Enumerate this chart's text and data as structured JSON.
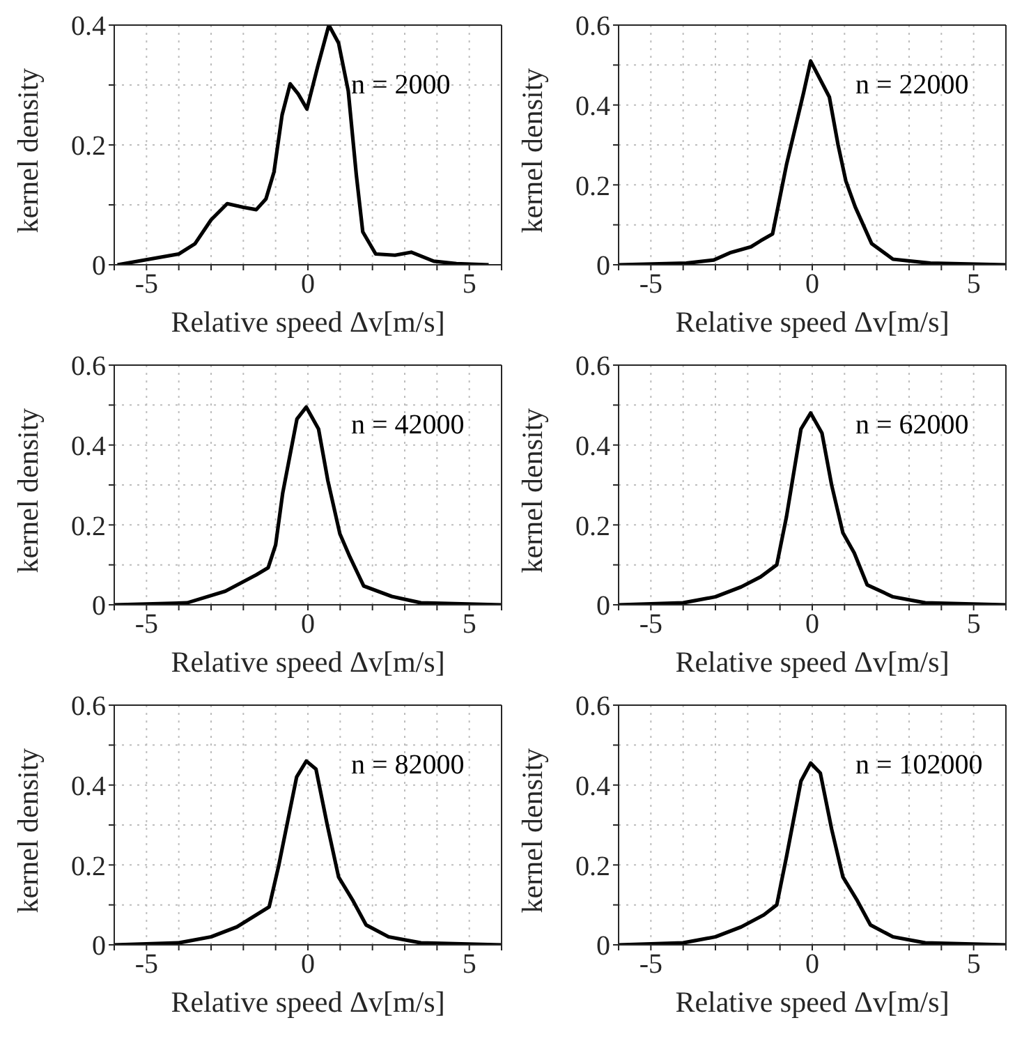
{
  "chart_data": [
    {
      "type": "line",
      "xlabel": "Relative speed Δv[m/s]",
      "ylabel": "kernel density",
      "annotations": [
        "n = 2000"
      ],
      "xlim": [
        -6,
        6
      ],
      "ylim": [
        0,
        0.4
      ],
      "xticks": [
        {
          "value": -6,
          "label": null
        },
        -5,
        {
          "value": -4,
          "label": null
        },
        {
          "value": -3,
          "label": null
        },
        {
          "value": -2,
          "label": null
        },
        {
          "value": -1,
          "label": null
        },
        0,
        {
          "value": 1,
          "label": null
        },
        {
          "value": 2,
          "label": null
        },
        {
          "value": 3,
          "label": null
        },
        {
          "value": 4,
          "label": null
        },
        5,
        {
          "value": 6,
          "label": null
        }
      ],
      "yticks": [
        0,
        {
          "value": 0.1,
          "label": null
        },
        0.2,
        {
          "value": 0.3,
          "label": null
        },
        0.4
      ],
      "grid": true,
      "marker": "none",
      "line_style": "solid",
      "series": [
        {
          "color": "#000000",
          "x": [
            -5.9,
            -4,
            -3.5,
            -3,
            -2.5,
            -2,
            -1.6,
            -1.3,
            -1.05,
            -0.8,
            -0.55,
            -0.3,
            -0.03,
            0.3,
            0.65,
            0.95,
            1.25,
            1.5,
            1.7,
            2.1,
            2.7,
            3.2,
            3.9,
            4.6,
            5.6
          ],
          "values": [
            0,
            0.018,
            0.035,
            0.075,
            0.102,
            0.096,
            0.092,
            0.11,
            0.155,
            0.25,
            0.302,
            0.285,
            0.26,
            0.33,
            0.4,
            0.37,
            0.29,
            0.15,
            0.055,
            0.018,
            0.016,
            0.021,
            0.006,
            0.002,
            0
          ]
        }
      ]
    },
    {
      "type": "line",
      "xlabel": "Relative speed Δv[m/s]",
      "ylabel": "kernel density",
      "annotations": [
        "n = 22000"
      ],
      "xlim": [
        -6,
        6
      ],
      "ylim": [
        0,
        0.6
      ],
      "xticks": [
        {
          "value": -6,
          "label": null
        },
        -5,
        {
          "value": -4,
          "label": null
        },
        {
          "value": -3,
          "label": null
        },
        {
          "value": -2,
          "label": null
        },
        {
          "value": -1,
          "label": null
        },
        0,
        {
          "value": 1,
          "label": null
        },
        {
          "value": 2,
          "label": null
        },
        {
          "value": 3,
          "label": null
        },
        {
          "value": 4,
          "label": null
        },
        5,
        {
          "value": 6,
          "label": null
        }
      ],
      "yticks": [
        0,
        {
          "value": 0.1,
          "label": null
        },
        0.2,
        {
          "value": 0.3,
          "label": null
        },
        0.4,
        {
          "value": 0.5,
          "label": null
        },
        0.6
      ],
      "grid": true,
      "marker": "none",
      "line_style": "solid",
      "series": [
        {
          "color": "#000000",
          "x": [
            -6,
            -3.9,
            -3.05,
            -2.55,
            -1.9,
            -1.6,
            -1.23,
            -0.8,
            -0.27,
            -0.05,
            0.53,
            0.8,
            1.04,
            1.33,
            1.84,
            2.5,
            3.66,
            6
          ],
          "values": [
            0,
            0.004,
            0.012,
            0.03,
            0.045,
            0.06,
            0.077,
            0.25,
            0.43,
            0.51,
            0.42,
            0.3,
            0.21,
            0.145,
            0.053,
            0.014,
            0.004,
            0
          ]
        }
      ]
    },
    {
      "type": "line",
      "xlabel": "Relative speed Δv[m/s]",
      "ylabel": "kernel density",
      "annotations": [
        "n = 42000"
      ],
      "xlim": [
        -6,
        6
      ],
      "ylim": [
        0,
        0.6
      ],
      "xticks": [
        {
          "value": -6,
          "label": null
        },
        -5,
        {
          "value": -4,
          "label": null
        },
        {
          "value": -3,
          "label": null
        },
        {
          "value": -2,
          "label": null
        },
        {
          "value": -1,
          "label": null
        },
        0,
        {
          "value": 1,
          "label": null
        },
        {
          "value": 2,
          "label": null
        },
        {
          "value": 3,
          "label": null
        },
        {
          "value": 4,
          "label": null
        },
        5,
        {
          "value": 6,
          "label": null
        }
      ],
      "yticks": [
        0,
        {
          "value": 0.1,
          "label": null
        },
        0.2,
        {
          "value": 0.3,
          "label": null
        },
        0.4,
        {
          "value": 0.5,
          "label": null
        },
        0.6
      ],
      "grid": true,
      "marker": "none",
      "line_style": "solid",
      "series": [
        {
          "color": "#000000",
          "x": [
            -6,
            -3.74,
            -2.56,
            -1.6,
            -1.23,
            -1,
            -0.78,
            -0.34,
            -0.05,
            0.33,
            0.62,
            0.99,
            1.3,
            1.73,
            2.6,
            3.5,
            6
          ],
          "values": [
            0,
            0.005,
            0.034,
            0.075,
            0.093,
            0.15,
            0.28,
            0.465,
            0.495,
            0.44,
            0.31,
            0.178,
            0.12,
            0.047,
            0.021,
            0.005,
            0
          ]
        }
      ]
    },
    {
      "type": "line",
      "xlabel": "Relative speed Δv[m/s]",
      "ylabel": "kernel density",
      "annotations": [
        "n = 62000"
      ],
      "xlim": [
        -6,
        6
      ],
      "ylim": [
        0,
        0.6
      ],
      "xticks": [
        {
          "value": -6,
          "label": null
        },
        -5,
        {
          "value": -4,
          "label": null
        },
        {
          "value": -3,
          "label": null
        },
        {
          "value": -2,
          "label": null
        },
        {
          "value": -1,
          "label": null
        },
        0,
        {
          "value": 1,
          "label": null
        },
        {
          "value": 2,
          "label": null
        },
        {
          "value": 3,
          "label": null
        },
        {
          "value": 4,
          "label": null
        },
        5,
        {
          "value": 6,
          "label": null
        }
      ],
      "yticks": [
        0,
        {
          "value": 0.1,
          "label": null
        },
        0.2,
        {
          "value": 0.3,
          "label": null
        },
        0.4,
        {
          "value": 0.5,
          "label": null
        },
        0.6
      ],
      "grid": true,
      "marker": "none",
      "line_style": "solid",
      "series": [
        {
          "color": "#000000",
          "x": [
            -6,
            -4,
            -3,
            -2.2,
            -1.6,
            -1.1,
            -0.8,
            -0.35,
            -0.05,
            0.3,
            0.6,
            0.95,
            1.3,
            1.7,
            2.5,
            3.5,
            6
          ],
          "values": [
            0,
            0.005,
            0.02,
            0.045,
            0.07,
            0.1,
            0.22,
            0.44,
            0.48,
            0.43,
            0.3,
            0.18,
            0.13,
            0.05,
            0.02,
            0.005,
            0
          ]
        }
      ]
    },
    {
      "type": "line",
      "xlabel": "Relative speed Δv[m/s]",
      "ylabel": "kernel density",
      "annotations": [
        "n = 82000"
      ],
      "xlim": [
        -6,
        6
      ],
      "ylim": [
        0,
        0.6
      ],
      "xticks": [
        {
          "value": -6,
          "label": null
        },
        -5,
        {
          "value": -4,
          "label": null
        },
        {
          "value": -3,
          "label": null
        },
        {
          "value": -2,
          "label": null
        },
        {
          "value": -1,
          "label": null
        },
        0,
        {
          "value": 1,
          "label": null
        },
        {
          "value": 2,
          "label": null
        },
        {
          "value": 3,
          "label": null
        },
        {
          "value": 4,
          "label": null
        },
        5,
        {
          "value": 6,
          "label": null
        }
      ],
      "yticks": [
        0,
        {
          "value": 0.1,
          "label": null
        },
        0.2,
        {
          "value": 0.3,
          "label": null
        },
        0.4,
        {
          "value": 0.5,
          "label": null
        },
        0.6
      ],
      "grid": true,
      "marker": "none",
      "line_style": "solid",
      "series": [
        {
          "color": "#000000",
          "x": [
            -6,
            -4,
            -3,
            -2.2,
            -1.6,
            -1.2,
            -0.9,
            -0.35,
            -0.05,
            0.25,
            0.6,
            0.95,
            1.4,
            1.8,
            2.5,
            3.5,
            6
          ],
          "values": [
            0,
            0.005,
            0.02,
            0.045,
            0.075,
            0.095,
            0.2,
            0.42,
            0.46,
            0.44,
            0.3,
            0.17,
            0.11,
            0.05,
            0.02,
            0.005,
            0
          ]
        }
      ]
    },
    {
      "type": "line",
      "xlabel": "Relative speed Δv[m/s]",
      "ylabel": "kernel density",
      "annotations": [
        "n = 102000"
      ],
      "xlim": [
        -6,
        6
      ],
      "ylim": [
        0,
        0.6
      ],
      "xticks": [
        {
          "value": -6,
          "label": null
        },
        -5,
        {
          "value": -4,
          "label": null
        },
        {
          "value": -3,
          "label": null
        },
        {
          "value": -2,
          "label": null
        },
        {
          "value": -1,
          "label": null
        },
        0,
        {
          "value": 1,
          "label": null
        },
        {
          "value": 2,
          "label": null
        },
        {
          "value": 3,
          "label": null
        },
        {
          "value": 4,
          "label": null
        },
        5,
        {
          "value": 6,
          "label": null
        }
      ],
      "yticks": [
        0,
        {
          "value": 0.1,
          "label": null
        },
        0.2,
        {
          "value": 0.3,
          "label": null
        },
        0.4,
        {
          "value": 0.5,
          "label": null
        },
        0.6
      ],
      "grid": true,
      "marker": "none",
      "line_style": "solid",
      "series": [
        {
          "color": "#000000",
          "x": [
            -6,
            -4,
            -3,
            -2.2,
            -1.5,
            -1.1,
            -0.8,
            -0.35,
            -0.05,
            0.25,
            0.6,
            0.95,
            1.4,
            1.8,
            2.5,
            3.5,
            6
          ],
          "values": [
            0,
            0.005,
            0.02,
            0.045,
            0.075,
            0.1,
            0.22,
            0.41,
            0.455,
            0.43,
            0.29,
            0.17,
            0.11,
            0.05,
            0.02,
            0.005,
            0
          ]
        }
      ]
    }
  ]
}
